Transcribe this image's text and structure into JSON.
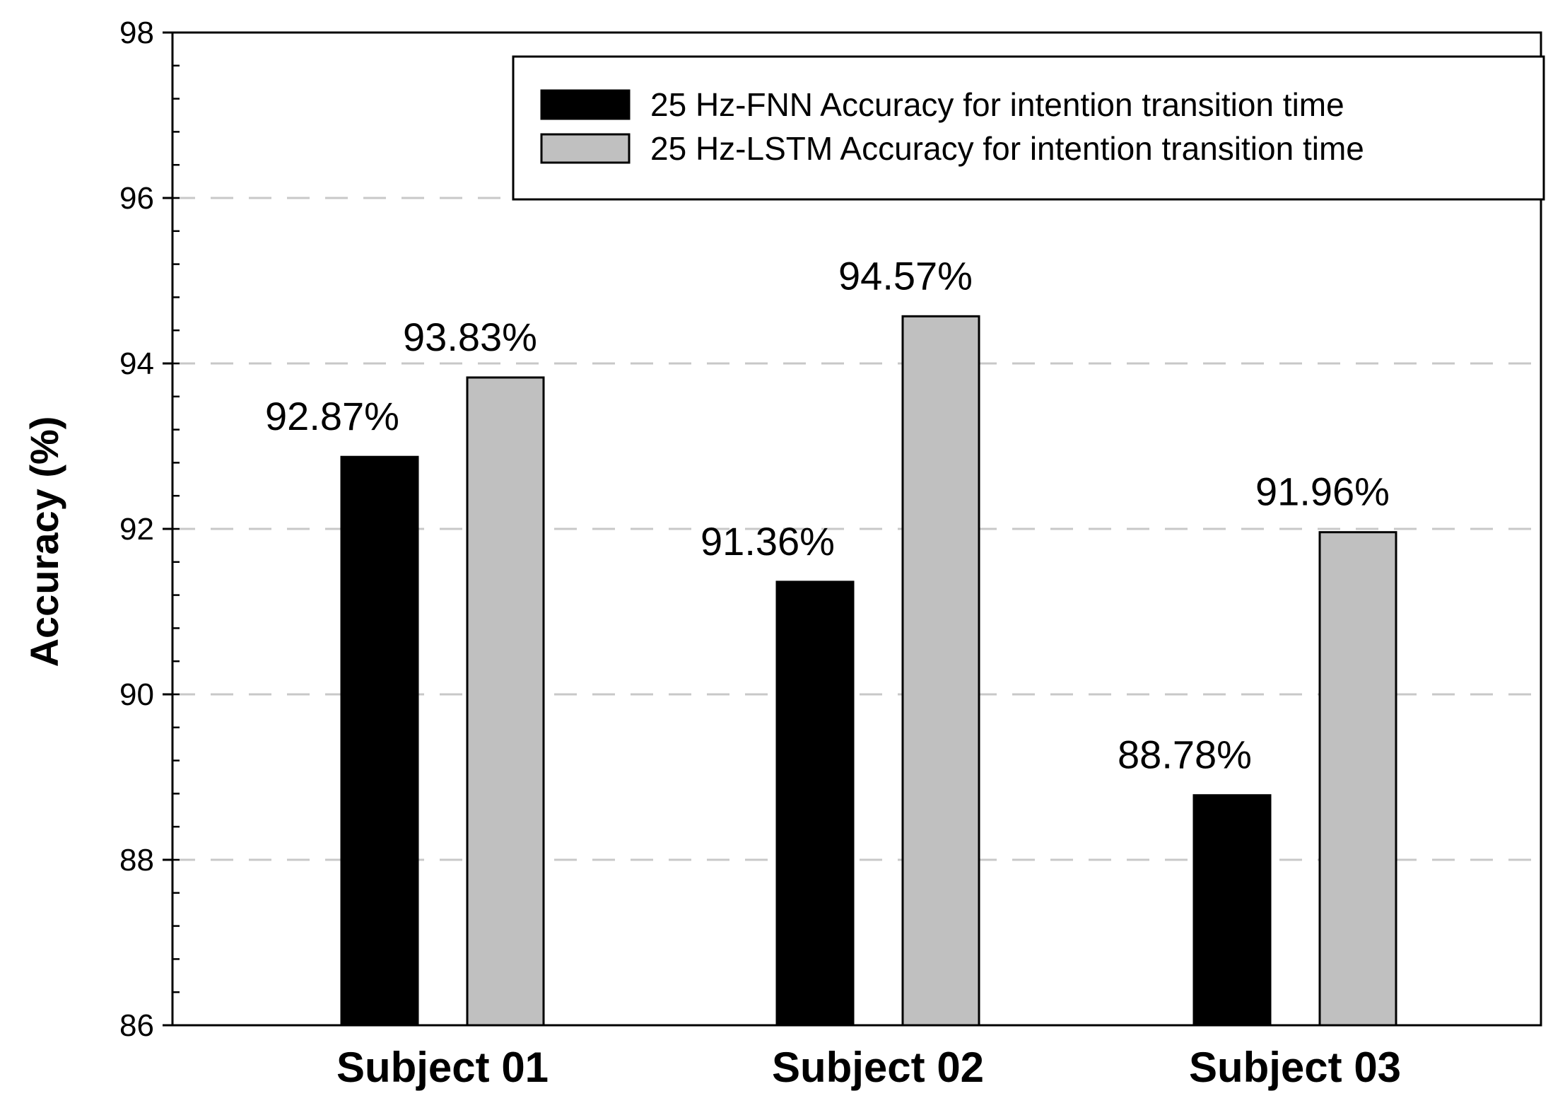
{
  "chart_data": {
    "type": "bar",
    "categories": [
      "Subject 01",
      "Subject 02",
      "Subject 03"
    ],
    "series": [
      {
        "name": "25 Hz-FNN Accuracy for intention transition time",
        "values": [
          92.87,
          91.36,
          88.78
        ],
        "labels": [
          "92.87%",
          "91.36%",
          "88.78%"
        ],
        "color": "#000000"
      },
      {
        "name": "25 Hz-LSTM Accuracy for intention transition time",
        "values": [
          93.83,
          94.57,
          91.96
        ],
        "labels": [
          "93.83%",
          "94.57%",
          "91.96%"
        ],
        "color": "#c0c0c0"
      }
    ],
    "title": "",
    "xlabel": "",
    "ylabel": "Accuracy (%)",
    "ylim": [
      86,
      98
    ],
    "yticks": [
      86,
      88,
      90,
      92,
      94,
      96,
      98
    ],
    "grid": "horizontal dashed",
    "legend_position": "top-right",
    "colors": {
      "grid": "#c8c8c8",
      "axis": "#000000"
    }
  }
}
